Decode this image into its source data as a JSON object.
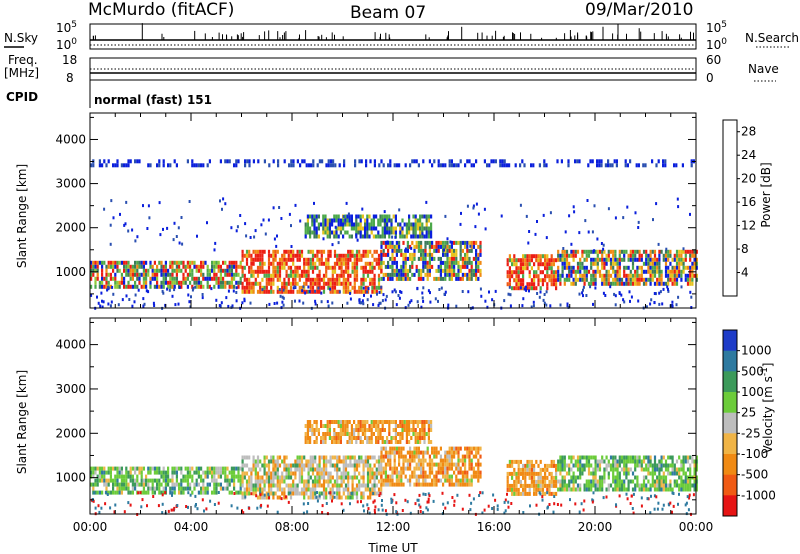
{
  "header": {
    "station": "McMurdo (fitACF)",
    "beam": "Beam 07",
    "date": "09/Mar/2010"
  },
  "top_panels": {
    "noise": {
      "left_label": "N.Sky",
      "right_label": "N.Search",
      "left_ticks": [
        "10^5",
        "10^0"
      ],
      "right_ticks": [
        "10^5",
        "10^0"
      ]
    },
    "freq": {
      "left_label_1": "Freq.",
      "left_label_2": "[MHz]",
      "right_label": "Nave",
      "left_ticks": [
        "18",
        "8"
      ],
      "right_ticks": [
        "60",
        "0"
      ]
    },
    "cpid": {
      "label": "CPID",
      "value": "normal (fast) 151"
    }
  },
  "chart_data": [
    {
      "type": "heatmap",
      "name": "power-panel",
      "xlabel": "",
      "ylabel": "Slant Range [km]",
      "xlim": [
        0,
        24
      ],
      "ylim": [
        180,
        4600
      ],
      "yticks": [
        "1000",
        "2000",
        "3000",
        "4000"
      ],
      "ytick_values": [
        1000,
        2000,
        3000,
        4000
      ],
      "colorbar": {
        "label": "Power [dB]",
        "ticks": [
          "4",
          "8",
          "12",
          "16",
          "20",
          "24",
          "28"
        ],
        "range": [
          0,
          30
        ],
        "colors": [
          "#0a1fdc",
          "#2a4fb0",
          "#3c7a5a",
          "#4ca84a",
          "#8fcc3a",
          "#e6c31e",
          "#f08a14",
          "#f05a14",
          "#ec1e14"
        ]
      },
      "bands": [
        {
          "t0": 0.0,
          "t1": 6.0,
          "r0": 650,
          "r1": 1250,
          "level": "mixed-high"
        },
        {
          "t0": 6.0,
          "t1": 11.5,
          "r0": 550,
          "r1": 1500,
          "level": "high"
        },
        {
          "t0": 11.5,
          "t1": 15.5,
          "r0": 800,
          "r1": 1700,
          "level": "mixed"
        },
        {
          "t0": 16.5,
          "t1": 18.5,
          "r0": 650,
          "r1": 1400,
          "level": "high"
        },
        {
          "t0": 18.5,
          "t1": 24.0,
          "r0": 700,
          "r1": 1500,
          "level": "mixed"
        },
        {
          "t0": 8.5,
          "t1": 13.5,
          "r0": 1800,
          "r1": 2300,
          "level": "low"
        },
        {
          "t0": 0.0,
          "t1": 24.0,
          "r0": 3450,
          "r1": 3550,
          "level": "sparse"
        }
      ]
    },
    {
      "type": "heatmap",
      "name": "velocity-panel",
      "xlabel": "Time UT",
      "ylabel": "Slant Range [km]",
      "xlim": [
        0,
        24
      ],
      "ylim": [
        180,
        4600
      ],
      "xticks": [
        "00:00",
        "04:00",
        "08:00",
        "12:00",
        "16:00",
        "20:00",
        "00:00"
      ],
      "xtick_values": [
        0,
        4,
        8,
        12,
        16,
        20,
        24
      ],
      "yticks": [
        "1000",
        "2000",
        "3000",
        "4000"
      ],
      "ytick_values": [
        1000,
        2000,
        3000,
        4000
      ],
      "colorbar": {
        "label": "Velocity [m s^-1]",
        "ticks": [
          "1000",
          "500",
          "100",
          "25",
          "-25",
          "-100",
          "-500",
          "-1000"
        ],
        "colors": [
          "#1e3cc8",
          "#2e7aa0",
          "#3c9a5a",
          "#6ccc3a",
          "#bdbdbd",
          "#f0b446",
          "#f08a14",
          "#f05a14",
          "#e61414"
        ]
      },
      "bands": [
        {
          "t0": 0.0,
          "t1": 6.0,
          "r0": 650,
          "r1": 1250,
          "level": "green"
        },
        {
          "t0": 6.0,
          "t1": 11.5,
          "r0": 550,
          "r1": 1500,
          "level": "mixed-grey-orange"
        },
        {
          "t0": 11.5,
          "t1": 15.5,
          "r0": 800,
          "r1": 1700,
          "level": "orange"
        },
        {
          "t0": 16.5,
          "t1": 18.5,
          "r0": 650,
          "r1": 1400,
          "level": "orange"
        },
        {
          "t0": 18.5,
          "t1": 24.0,
          "r0": 700,
          "r1": 1500,
          "level": "green"
        },
        {
          "t0": 8.5,
          "t1": 13.5,
          "r0": 1800,
          "r1": 2300,
          "level": "orange"
        }
      ]
    }
  ]
}
